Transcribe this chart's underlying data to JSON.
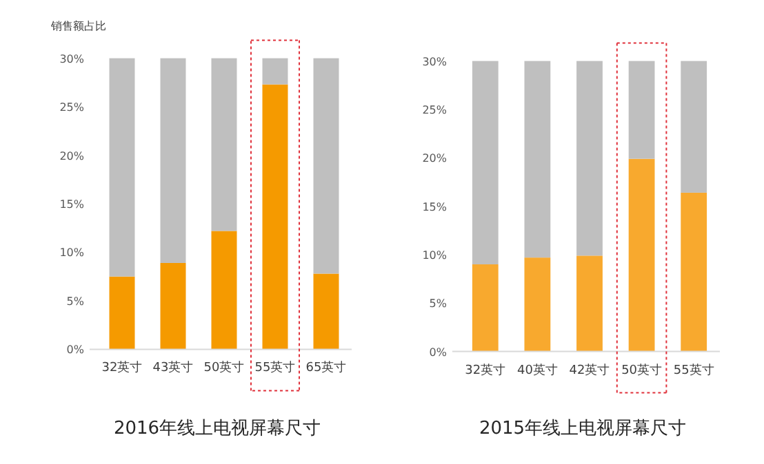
{
  "chart_data": [
    {
      "type": "bar",
      "title": "2016年线上电视屏幕尺寸",
      "ylabel": "销售额占比",
      "categories": [
        "32英寸",
        "43英寸",
        "50英寸",
        "55英寸",
        "65英寸"
      ],
      "stacked": true,
      "ylim": [
        0,
        30
      ],
      "yticks": [
        {
          "value": 0,
          "label": "0%"
        },
        {
          "value": 5,
          "label": "5%"
        },
        {
          "value": 10,
          "label": "10%"
        },
        {
          "value": 15,
          "label": "15%"
        },
        {
          "value": 20,
          "label": "20%"
        },
        {
          "value": 25,
          "label": "25%"
        },
        {
          "value": 30,
          "label": "30%"
        }
      ],
      "series": [
        {
          "color": "#f59a00",
          "values": [
            7.5,
            8.9,
            12.2,
            27.3,
            7.8
          ]
        },
        {
          "color": "#bfbfbf",
          "values": [
            22.5,
            21.1,
            17.8,
            2.7,
            22.2
          ]
        }
      ]
    },
    {
      "type": "bar",
      "title": "2015年线上电视屏幕尺寸",
      "categories": [
        "32英寸",
        "40英寸",
        "42英寸",
        "50英寸",
        "55英寸"
      ],
      "stacked": true,
      "ylim": [
        0,
        30
      ],
      "yticks": [
        {
          "value": 0,
          "label": "0%"
        },
        {
          "value": 5,
          "label": "5%"
        },
        {
          "value": 10,
          "label": "10%"
        },
        {
          "value": 15,
          "label": "15%"
        },
        {
          "value": 20,
          "label": "20%"
        },
        {
          "value": 25,
          "label": "25%"
        },
        {
          "value": 30,
          "label": "30%"
        }
      ],
      "series": [
        {
          "color": "#f8a92e",
          "values": [
            9.0,
            9.7,
            9.9,
            19.9,
            16.4
          ]
        },
        {
          "color": "#bfbfbf",
          "values": [
            21.0,
            20.3,
            20.1,
            10.1,
            13.6
          ]
        }
      ]
    }
  ]
}
